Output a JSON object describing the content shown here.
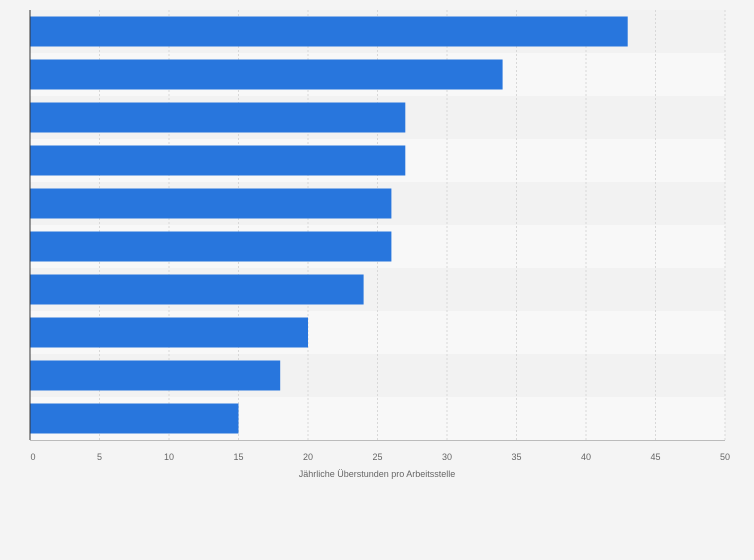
{
  "colors": {
    "background": "#f4f4f4",
    "band_light": "#f8f8f8",
    "band_dark": "#f2f2f2",
    "bar": "#2876dd",
    "grid": "#d8d8d8",
    "axis": "#333333",
    "text": "#666666"
  },
  "chart_data": {
    "type": "bar",
    "orientation": "horizontal",
    "title": "",
    "xlabel": "Jährliche Überstunden pro Arbeitsstelle",
    "ylabel": "",
    "categories": [
      "",
      "",
      "",
      "",
      "",
      "",
      "",
      "",
      "",
      ""
    ],
    "values": [
      43,
      34,
      27,
      27,
      26,
      26,
      24,
      20,
      18,
      15
    ],
    "xlim": [
      0,
      50
    ],
    "xticks": [
      0,
      5,
      10,
      15,
      20,
      25,
      30,
      35,
      40,
      45,
      50
    ],
    "xtick_labels": [
      "0",
      "5",
      "10",
      "15",
      "20",
      "25",
      "30",
      "35",
      "40",
      "45",
      "50"
    ],
    "grid": true,
    "legend": "none"
  }
}
